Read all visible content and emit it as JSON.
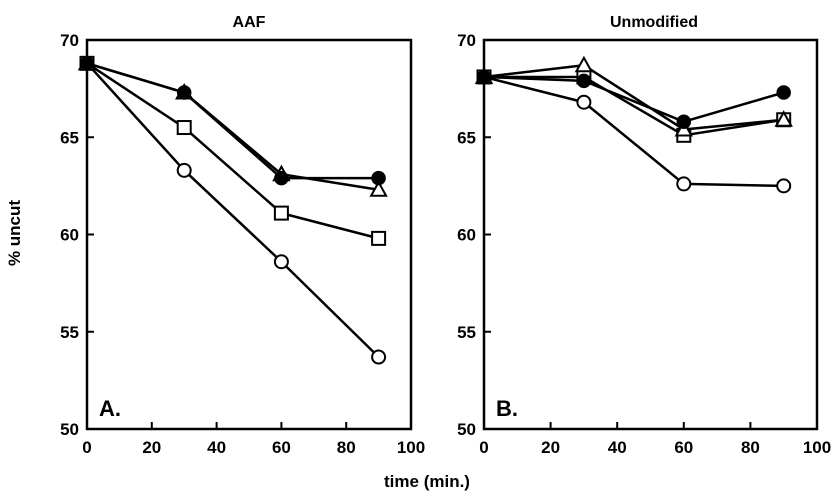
{
  "figure": {
    "ylabel": "% uncut",
    "xlabel": "time (min.)"
  },
  "chart_data": [
    {
      "type": "line",
      "title": "AAF",
      "panel_label": "A.",
      "xlabel": "time (min.)",
      "ylabel": "% uncut",
      "xlim": [
        0,
        100
      ],
      "ylim": [
        50,
        70
      ],
      "xticks": [
        0,
        20,
        40,
        60,
        80,
        100
      ],
      "yticks": [
        50,
        55,
        60,
        65,
        70
      ],
      "grid": false,
      "x": [
        0,
        30,
        60,
        90
      ],
      "series": [
        {
          "marker": "filled-circle",
          "values": [
            68.8,
            67.3,
            62.9,
            62.9
          ]
        },
        {
          "marker": "open-triangle",
          "values": [
            68.8,
            67.3,
            63.1,
            62.3
          ]
        },
        {
          "marker": "open-square",
          "values": [
            68.8,
            65.5,
            61.1,
            59.8
          ]
        },
        {
          "marker": "open-circle",
          "values": [
            68.8,
            63.3,
            58.6,
            53.7
          ]
        }
      ]
    },
    {
      "type": "line",
      "title": "Unmodified",
      "panel_label": "B.",
      "xlabel": "time (min.)",
      "ylabel": "% uncut",
      "xlim": [
        0,
        100
      ],
      "ylim": [
        50,
        70
      ],
      "xticks": [
        0,
        20,
        40,
        60,
        80,
        100
      ],
      "yticks": [
        50,
        55,
        60,
        65,
        70
      ],
      "grid": false,
      "x": [
        0,
        30,
        60,
        90
      ],
      "series": [
        {
          "marker": "filled-circle",
          "values": [
            68.1,
            67.9,
            65.8,
            67.3
          ]
        },
        {
          "marker": "open-triangle",
          "values": [
            68.1,
            68.7,
            65.4,
            65.9
          ]
        },
        {
          "marker": "open-square",
          "values": [
            68.1,
            68.1,
            65.1,
            65.9
          ]
        },
        {
          "marker": "open-circle",
          "values": [
            68.1,
            66.8,
            62.6,
            62.5
          ]
        }
      ]
    }
  ]
}
